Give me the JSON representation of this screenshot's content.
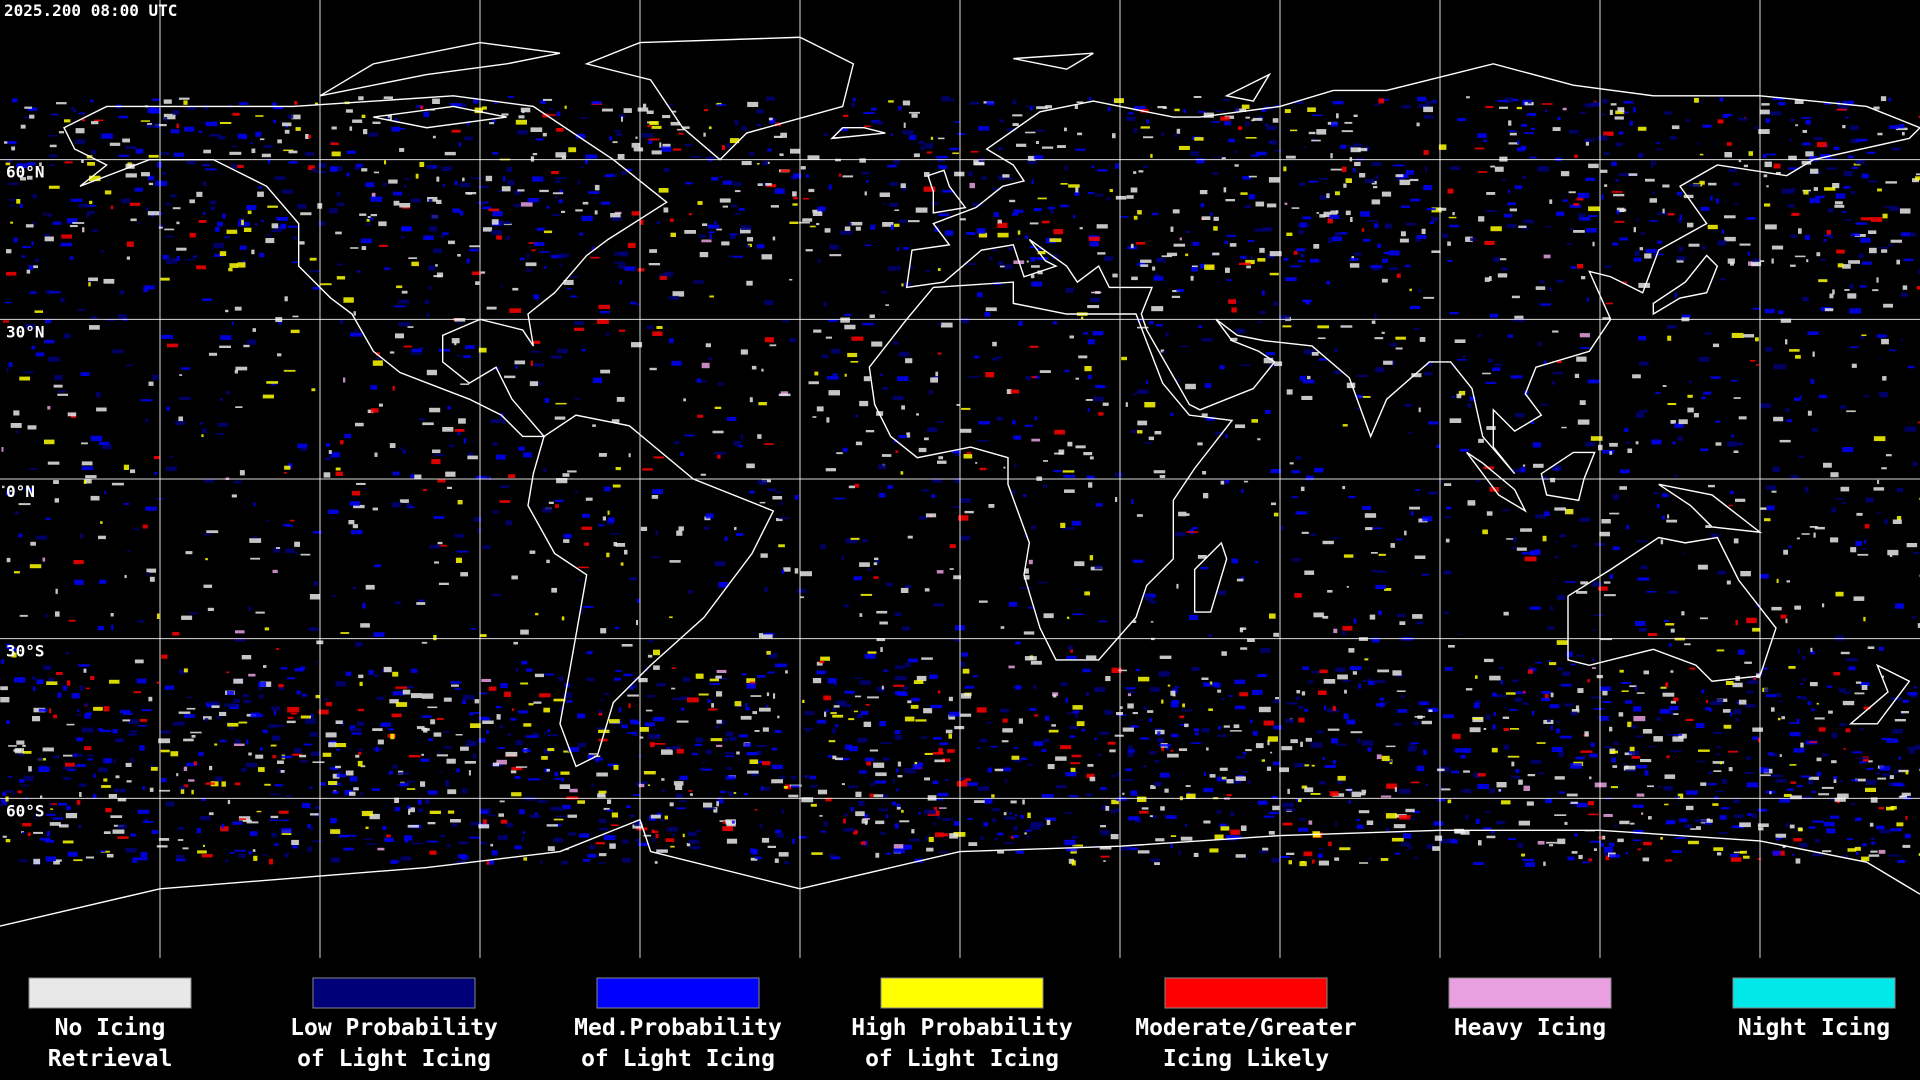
{
  "header": {
    "timestamp": "2025.200 08:00 UTC"
  },
  "map": {
    "lat_labels": [
      "60°N",
      "30°N",
      "0°N",
      "30°S",
      "60°S"
    ]
  },
  "legend": [
    {
      "lines": [
        "No Icing",
        "Retrieval"
      ],
      "color": "#e8e8e8"
    },
    {
      "lines": [
        "Low Probability",
        "of Light Icing"
      ],
      "color": "#000078"
    },
    {
      "lines": [
        "Med.Probability",
        "of Light Icing"
      ],
      "color": "#0000ff"
    },
    {
      "lines": [
        "High Probability",
        "of Light Icing"
      ],
      "color": "#ffff00"
    },
    {
      "lines": [
        "Moderate/Greater",
        "Icing Likely"
      ],
      "color": "#ff0000"
    },
    {
      "lines": [
        "Heavy Icing"
      ],
      "color": "#e8a0e0"
    },
    {
      "lines": [
        "Night Icing"
      ],
      "color": "#00e8e8"
    }
  ]
}
